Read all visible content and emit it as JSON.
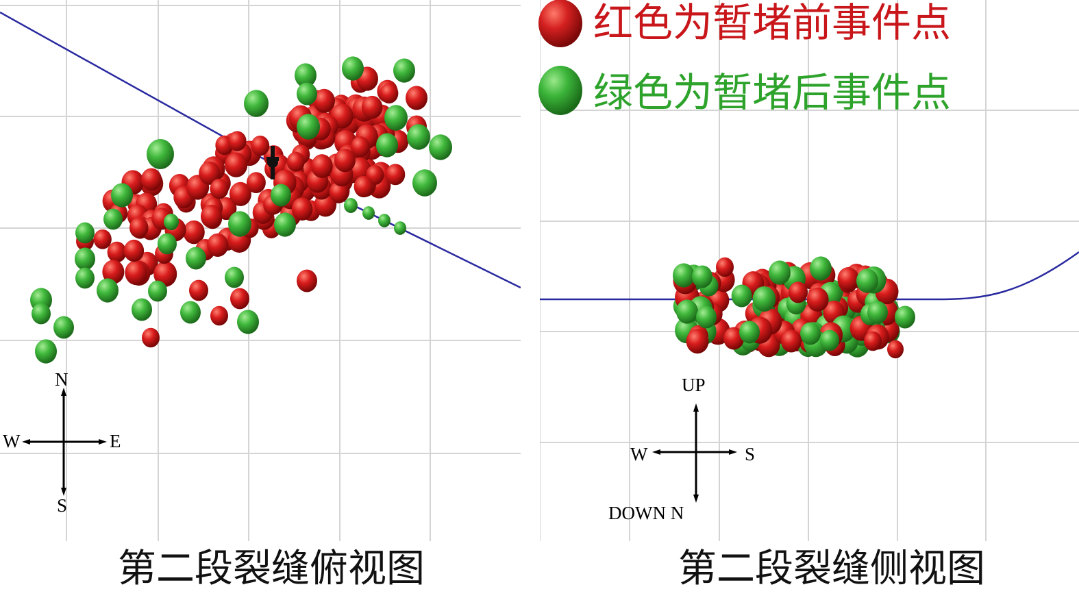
{
  "legend": {
    "red": {
      "label": "红色为暂堵前事件点",
      "color": "#d01818"
    },
    "green": {
      "label": "绿色为暂堵后事件点",
      "color": "#38b038"
    }
  },
  "left_panel": {
    "caption": "第二段裂缝俯视图",
    "compass": {
      "north": "N",
      "south": "S",
      "west": "W",
      "east": "E"
    }
  },
  "right_panel": {
    "caption": "第二段裂缝侧视图",
    "compass": {
      "up": "UP",
      "down": "DOWN N",
      "west": "W",
      "south": "S"
    }
  },
  "colors": {
    "grid": "#d4d4d4",
    "wellbore": "#2a2aa0",
    "background": "#ffffff"
  }
}
